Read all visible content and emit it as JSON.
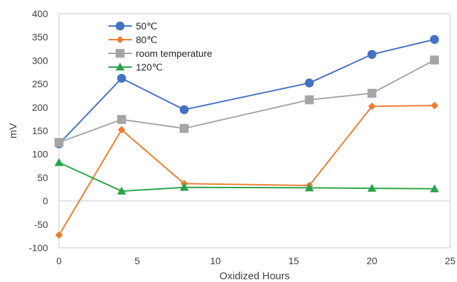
{
  "chart_data": {
    "type": "line",
    "title": "",
    "xlabel": "Oxidized Hours",
    "ylabel": "mV",
    "xlim": [
      0,
      25
    ],
    "ylim": [
      -100,
      400
    ],
    "xticks": [
      "0",
      "5",
      "10",
      "15",
      "20",
      "25"
    ],
    "yticks": [
      "400",
      "350",
      "300",
      "250",
      "200",
      "150",
      "100",
      "50",
      "0",
      "-50",
      "-100"
    ],
    "grid": false,
    "legend_position": "top-left",
    "series": [
      {
        "name": "50℃",
        "color": "#4472C4",
        "marker": "circle",
        "x": [
          0,
          4,
          8,
          16,
          20,
          24
        ],
        "y": [
          122,
          262,
          195,
          252,
          313,
          345
        ]
      },
      {
        "name": "80℃",
        "color": "#ED7D31",
        "marker": "diamond",
        "x": [
          0,
          4,
          8,
          16,
          20,
          24
        ],
        "y": [
          -73,
          152,
          37,
          33,
          202,
          204
        ]
      },
      {
        "name": "room temperature",
        "color": "#A5A5A5",
        "marker": "square",
        "x": [
          0,
          4,
          8,
          16,
          20,
          24
        ],
        "y": [
          125,
          174,
          155,
          216,
          230,
          301
        ]
      },
      {
        "name": "120℃",
        "color": "#27A348",
        "marker": "triangle",
        "x": [
          0,
          4,
          8,
          16,
          20,
          24
        ],
        "y": [
          82,
          21,
          29,
          28,
          27,
          26
        ]
      }
    ]
  }
}
